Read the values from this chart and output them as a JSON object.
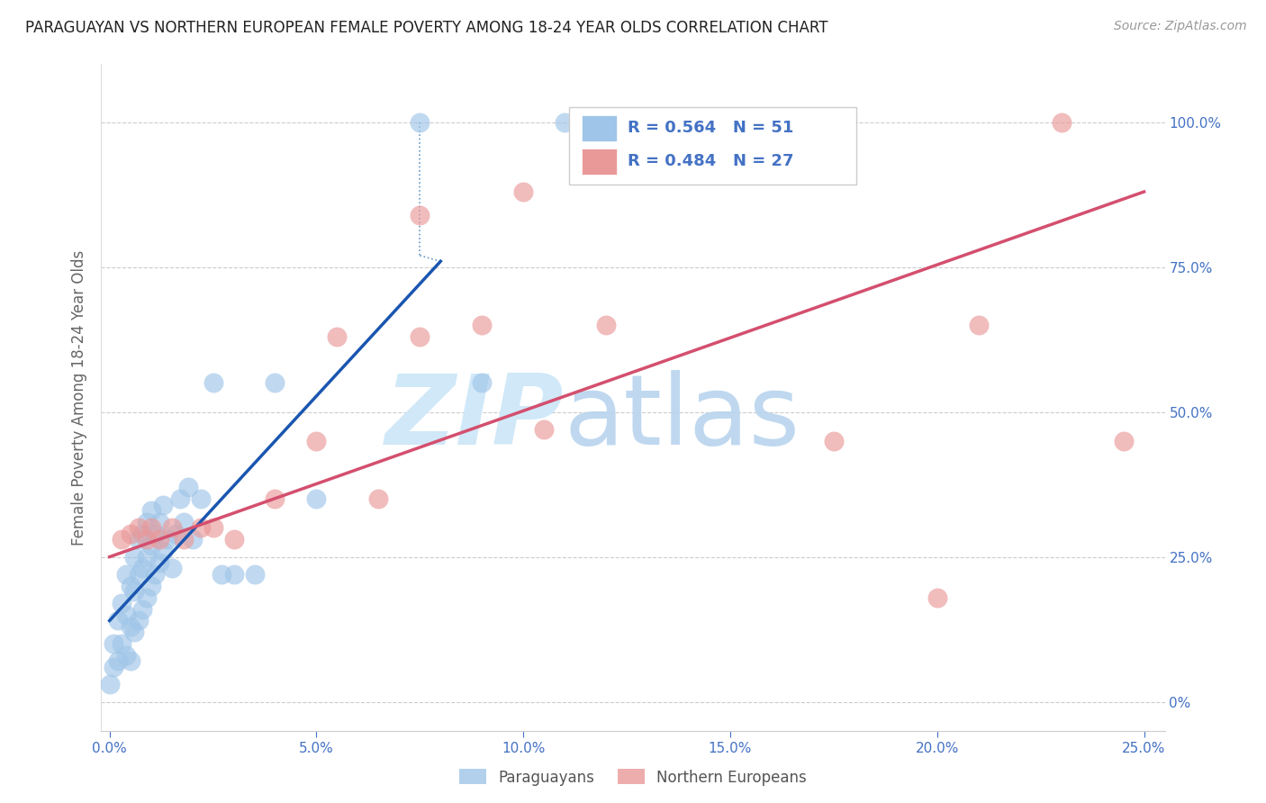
{
  "title": "PARAGUAYAN VS NORTHERN EUROPEAN FEMALE POVERTY AMONG 18-24 YEAR OLDS CORRELATION CHART",
  "source": "Source: ZipAtlas.com",
  "ylabel": "Female Poverty Among 18-24 Year Olds",
  "xlim": [
    -0.002,
    0.255
  ],
  "ylim": [
    -0.05,
    1.1
  ],
  "xticks": [
    0.0,
    0.05,
    0.1,
    0.15,
    0.2,
    0.25
  ],
  "yticks": [
    0.0,
    0.25,
    0.5,
    0.75,
    1.0
  ],
  "ytick_labels_right": [
    "0%",
    "25.0%",
    "50.0%",
    "75.0%",
    "100.0%"
  ],
  "xtick_labels": [
    "0.0%",
    "5.0%",
    "10.0%",
    "15.0%",
    "20.0%",
    "25.0%"
  ],
  "legend_R_blue": "R = 0.564",
  "legend_N_blue": "N = 51",
  "legend_R_pink": "R = 0.484",
  "legend_N_pink": "N = 27",
  "blue_dot_color": "#9fc5e8",
  "pink_dot_color": "#ea9999",
  "blue_line_color": "#1a56b0",
  "pink_line_color": "#d44f6e",
  "title_color": "#222222",
  "axis_label_color": "#666666",
  "tick_color": "#4472c4",
  "grid_color": "#cccccc",
  "paraguayan_x": [
    0.0,
    0.001,
    0.001,
    0.002,
    0.002,
    0.003,
    0.003,
    0.004,
    0.004,
    0.004,
    0.005,
    0.005,
    0.005,
    0.006,
    0.006,
    0.006,
    0.007,
    0.007,
    0.007,
    0.008,
    0.008,
    0.008,
    0.009,
    0.009,
    0.009,
    0.01,
    0.01,
    0.01,
    0.011,
    0.011,
    0.012,
    0.012,
    0.013,
    0.013,
    0.014,
    0.015,
    0.016,
    0.017,
    0.018,
    0.019,
    0.02,
    0.022,
    0.025,
    0.027,
    0.03,
    0.035,
    0.04,
    0.05,
    0.075,
    0.09,
    0.11
  ],
  "paraguayan_y": [
    0.03,
    0.06,
    0.1,
    0.07,
    0.14,
    0.1,
    0.17,
    0.08,
    0.15,
    0.22,
    0.07,
    0.13,
    0.2,
    0.12,
    0.19,
    0.25,
    0.14,
    0.22,
    0.28,
    0.16,
    0.23,
    0.29,
    0.18,
    0.25,
    0.31,
    0.2,
    0.27,
    0.33,
    0.22,
    0.29,
    0.24,
    0.31,
    0.26,
    0.34,
    0.28,
    0.23,
    0.29,
    0.35,
    0.31,
    0.37,
    0.28,
    0.35,
    0.55,
    0.22,
    0.22,
    0.22,
    0.55,
    0.35,
    1.0,
    0.55,
    1.0
  ],
  "northern_european_x": [
    0.003,
    0.005,
    0.007,
    0.009,
    0.01,
    0.012,
    0.015,
    0.018,
    0.022,
    0.025,
    0.03,
    0.04,
    0.05,
    0.055,
    0.065,
    0.075,
    0.09,
    0.1,
    0.105,
    0.12,
    0.15,
    0.175,
    0.2,
    0.21,
    0.23,
    0.245,
    0.075
  ],
  "northern_european_y": [
    0.28,
    0.29,
    0.3,
    0.28,
    0.3,
    0.28,
    0.3,
    0.28,
    0.3,
    0.3,
    0.28,
    0.35,
    0.45,
    0.63,
    0.35,
    0.63,
    0.65,
    0.88,
    0.47,
    0.65,
    1.0,
    0.45,
    0.18,
    0.65,
    1.0,
    0.45,
    0.84
  ],
  "blue_regline_x": [
    0.0,
    0.08
  ],
  "blue_regline_y": [
    0.14,
    0.76
  ],
  "pink_regline_x": [
    0.0,
    0.25
  ],
  "pink_regline_y": [
    0.25,
    0.88
  ],
  "dashed_line_x": [
    0.075,
    0.075
  ],
  "dashed_line_y": [
    1.0,
    0.76
  ],
  "dashed_line2_x": [
    0.075,
    0.08
  ],
  "dashed_line2_y": [
    0.76,
    0.76
  ]
}
